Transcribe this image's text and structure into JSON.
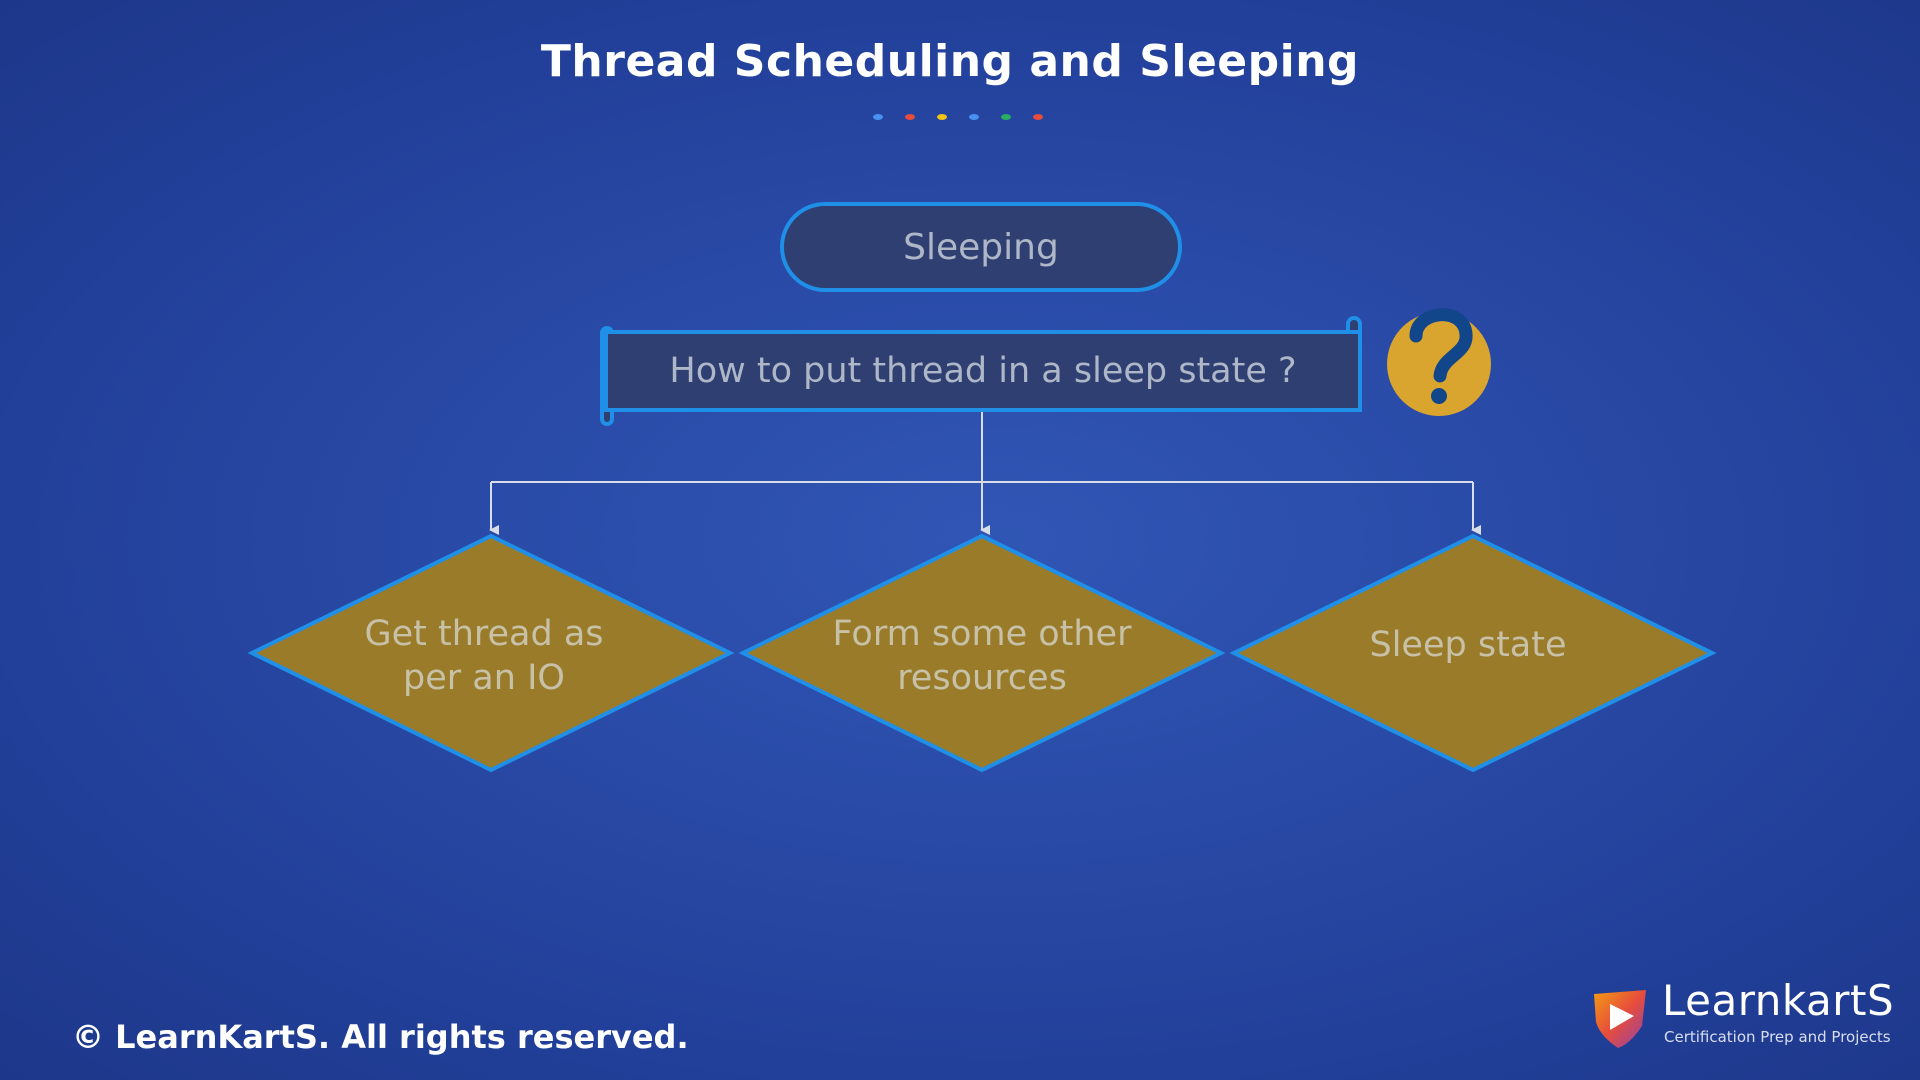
{
  "title": "Thread Scheduling and Sleeping",
  "decor_dots": [
    "#4a90f0",
    "#e74c3c",
    "#f1c40f",
    "#4a90f0",
    "#27ae60",
    "#e74c3c"
  ],
  "diagram": {
    "top_node": "Sleeping",
    "question_node": "How to put thread in a sleep state ?",
    "question_icon": "question-mark-icon",
    "branches": [
      {
        "line1": "Get thread as",
        "line2": "per an IO"
      },
      {
        "line1": "Form some other",
        "line2": "resources"
      },
      {
        "line1": "Sleep state",
        "line2": ""
      }
    ],
    "colors": {
      "node_fill": "#2f3f72",
      "node_border": "#1f8fe8",
      "diamond_fill": "#9a7b2a",
      "icon_fill": "#d9a52e"
    }
  },
  "footer": "© LearnKartS. All rights reserved.",
  "logo": {
    "name": "LearnkartS",
    "tagline": "Certification Prep and Projects"
  }
}
